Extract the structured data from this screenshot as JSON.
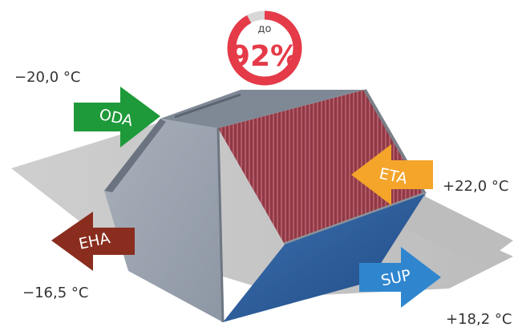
{
  "colors": {
    "oda": "#1e9a3a",
    "eta": "#f4a52a",
    "eha": "#8a2d1e",
    "sup": "#2f86cf",
    "badge_ring": "#e53a48",
    "badge_ring_track": "#d8d8d8"
  },
  "badge": {
    "prefix": "до",
    "value": "92%",
    "efficiency_fraction": 0.92
  },
  "flows": {
    "oda": {
      "label": "ODA",
      "temperature": "−20,0 °C"
    },
    "eta": {
      "label": "ETA",
      "temperature": "+22,0 °C"
    },
    "eha": {
      "label": "EHA",
      "temperature": "−16,5 °C"
    },
    "sup": {
      "label": "SUP",
      "temperature": "+18,2 °C"
    }
  },
  "icons": {
    "badge": "efficiency-ring-icon",
    "unit": "heat-exchanger-icon"
  }
}
